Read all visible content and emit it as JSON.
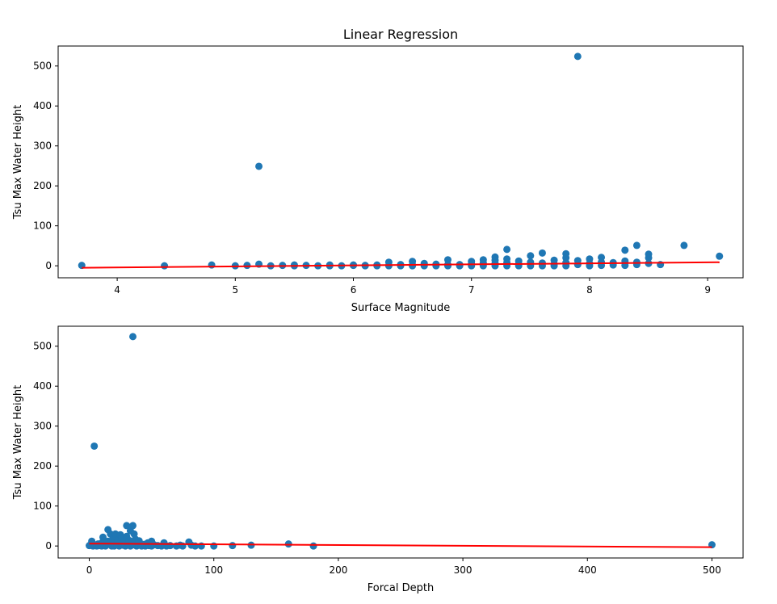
{
  "figure": {
    "title": "Linear Regression",
    "point_color": "#1f77b4",
    "line_color": "#ff0000"
  },
  "chart_data": [
    {
      "type": "scatter",
      "title": "Linear Regression",
      "xlabel": "Surface Magnitude",
      "ylabel": "Tsu Max Water Height",
      "xlim": [
        3.5,
        9.3
      ],
      "ylim": [
        -30,
        550
      ],
      "xticks": [
        4,
        5,
        6,
        7,
        8,
        9
      ],
      "yticks": [
        0,
        100,
        200,
        300,
        400,
        500
      ],
      "grid": false,
      "legend": "none",
      "series": [
        {
          "kind": "scatter",
          "points": [
            [
              3.7,
              1
            ],
            [
              4.4,
              0
            ],
            [
              4.8,
              2
            ],
            [
              5.0,
              0
            ],
            [
              5.1,
              1
            ],
            [
              5.2,
              4
            ],
            [
              5.2,
              249
            ],
            [
              5.3,
              0
            ],
            [
              5.4,
              1
            ],
            [
              5.5,
              2
            ],
            [
              5.5,
              0
            ],
            [
              5.6,
              1
            ],
            [
              5.7,
              0
            ],
            [
              5.8,
              2
            ],
            [
              5.8,
              0
            ],
            [
              5.9,
              0
            ],
            [
              6.0,
              1
            ],
            [
              6.0,
              2
            ],
            [
              6.1,
              0
            ],
            [
              6.1,
              1
            ],
            [
              6.2,
              0
            ],
            [
              6.2,
              2
            ],
            [
              6.3,
              9
            ],
            [
              6.3,
              0
            ],
            [
              6.4,
              3
            ],
            [
              6.4,
              0
            ],
            [
              6.5,
              11
            ],
            [
              6.5,
              0
            ],
            [
              6.5,
              2
            ],
            [
              6.6,
              6
            ],
            [
              6.6,
              0
            ],
            [
              6.7,
              4
            ],
            [
              6.7,
              0
            ],
            [
              6.8,
              15
            ],
            [
              6.8,
              0
            ],
            [
              6.8,
              3
            ],
            [
              6.9,
              3
            ],
            [
              6.9,
              0
            ],
            [
              7.0,
              11
            ],
            [
              7.0,
              5
            ],
            [
              7.0,
              0
            ],
            [
              7.1,
              15
            ],
            [
              7.1,
              7
            ],
            [
              7.1,
              0
            ],
            [
              7.2,
              22
            ],
            [
              7.2,
              14
            ],
            [
              7.2,
              6
            ],
            [
              7.2,
              0
            ],
            [
              7.3,
              41
            ],
            [
              7.3,
              17
            ],
            [
              7.3,
              8
            ],
            [
              7.3,
              0
            ],
            [
              7.4,
              12
            ],
            [
              7.4,
              4
            ],
            [
              7.4,
              0
            ],
            [
              7.5,
              25
            ],
            [
              7.5,
              9
            ],
            [
              7.5,
              0
            ],
            [
              7.6,
              32
            ],
            [
              7.6,
              7
            ],
            [
              7.6,
              0
            ],
            [
              7.7,
              14
            ],
            [
              7.7,
              4
            ],
            [
              7.7,
              0
            ],
            [
              7.8,
              30
            ],
            [
              7.8,
              20
            ],
            [
              7.8,
              8
            ],
            [
              7.8,
              0
            ],
            [
              7.9,
              524
            ],
            [
              7.9,
              13
            ],
            [
              7.9,
              3
            ],
            [
              8.0,
              17
            ],
            [
              8.0,
              6
            ],
            [
              8.0,
              0
            ],
            [
              8.1,
              21
            ],
            [
              8.1,
              9
            ],
            [
              8.1,
              1
            ],
            [
              8.2,
              8
            ],
            [
              8.2,
              2
            ],
            [
              8.3,
              39
            ],
            [
              8.3,
              12
            ],
            [
              8.3,
              1
            ],
            [
              8.4,
              51
            ],
            [
              8.4,
              9
            ],
            [
              8.4,
              3
            ],
            [
              8.5,
              29
            ],
            [
              8.5,
              20
            ],
            [
              8.5,
              6
            ],
            [
              8.6,
              3
            ],
            [
              8.8,
              51
            ],
            [
              9.1,
              24
            ]
          ]
        },
        {
          "kind": "line",
          "points": [
            [
              3.7,
              -5
            ],
            [
              9.1,
              9
            ]
          ]
        }
      ]
    },
    {
      "type": "scatter",
      "title": "",
      "xlabel": "Forcal Depth",
      "ylabel": "Tsu Max Water Height",
      "xlim": [
        -25,
        525
      ],
      "ylim": [
        -30,
        550
      ],
      "xticks": [
        0,
        100,
        200,
        300,
        400,
        500
      ],
      "yticks": [
        0,
        100,
        200,
        300,
        400,
        500
      ],
      "grid": false,
      "legend": "none",
      "series": [
        {
          "kind": "scatter",
          "points": [
            [
              0,
              1
            ],
            [
              1,
              3
            ],
            [
              2,
              12
            ],
            [
              3,
              0
            ],
            [
              4,
              250
            ],
            [
              5,
              2
            ],
            [
              6,
              0
            ],
            [
              7,
              5
            ],
            [
              8,
              1
            ],
            [
              10,
              0
            ],
            [
              10,
              8
            ],
            [
              11,
              22
            ],
            [
              12,
              3
            ],
            [
              13,
              0
            ],
            [
              15,
              41
            ],
            [
              15,
              12
            ],
            [
              16,
              6
            ],
            [
              17,
              30
            ],
            [
              18,
              0
            ],
            [
              19,
              18
            ],
            [
              20,
              9
            ],
            [
              20,
              0
            ],
            [
              21,
              30
            ],
            [
              22,
              4
            ],
            [
              23,
              15
            ],
            [
              24,
              0
            ],
            [
              25,
              28
            ],
            [
              25,
              7
            ],
            [
              26,
              20
            ],
            [
              27,
              2
            ],
            [
              28,
              11
            ],
            [
              29,
              0
            ],
            [
              30,
              51
            ],
            [
              30,
              24
            ],
            [
              31,
              6
            ],
            [
              32,
              14
            ],
            [
              33,
              0
            ],
            [
              33,
              38
            ],
            [
              34,
              9
            ],
            [
              35,
              524
            ],
            [
              35,
              51
            ],
            [
              35,
              3
            ],
            [
              36,
              30
            ],
            [
              37,
              17
            ],
            [
              38,
              0
            ],
            [
              39,
              7
            ],
            [
              40,
              13
            ],
            [
              40,
              2
            ],
            [
              42,
              0
            ],
            [
              44,
              4
            ],
            [
              45,
              0
            ],
            [
              47,
              8
            ],
            [
              48,
              1
            ],
            [
              50,
              12
            ],
            [
              50,
              0
            ],
            [
              52,
              3
            ],
            [
              55,
              1
            ],
            [
              58,
              0
            ],
            [
              60,
              8
            ],
            [
              62,
              0
            ],
            [
              65,
              1
            ],
            [
              70,
              0
            ],
            [
              73,
              2
            ],
            [
              75,
              0
            ],
            [
              80,
              10
            ],
            [
              82,
              2
            ],
            [
              85,
              0
            ],
            [
              90,
              0
            ],
            [
              100,
              0
            ],
            [
              115,
              1
            ],
            [
              130,
              2
            ],
            [
              160,
              5
            ],
            [
              180,
              0
            ],
            [
              500,
              3
            ]
          ]
        },
        {
          "kind": "line",
          "points": [
            [
              0,
              6
            ],
            [
              500,
              -3
            ]
          ]
        }
      ]
    }
  ]
}
